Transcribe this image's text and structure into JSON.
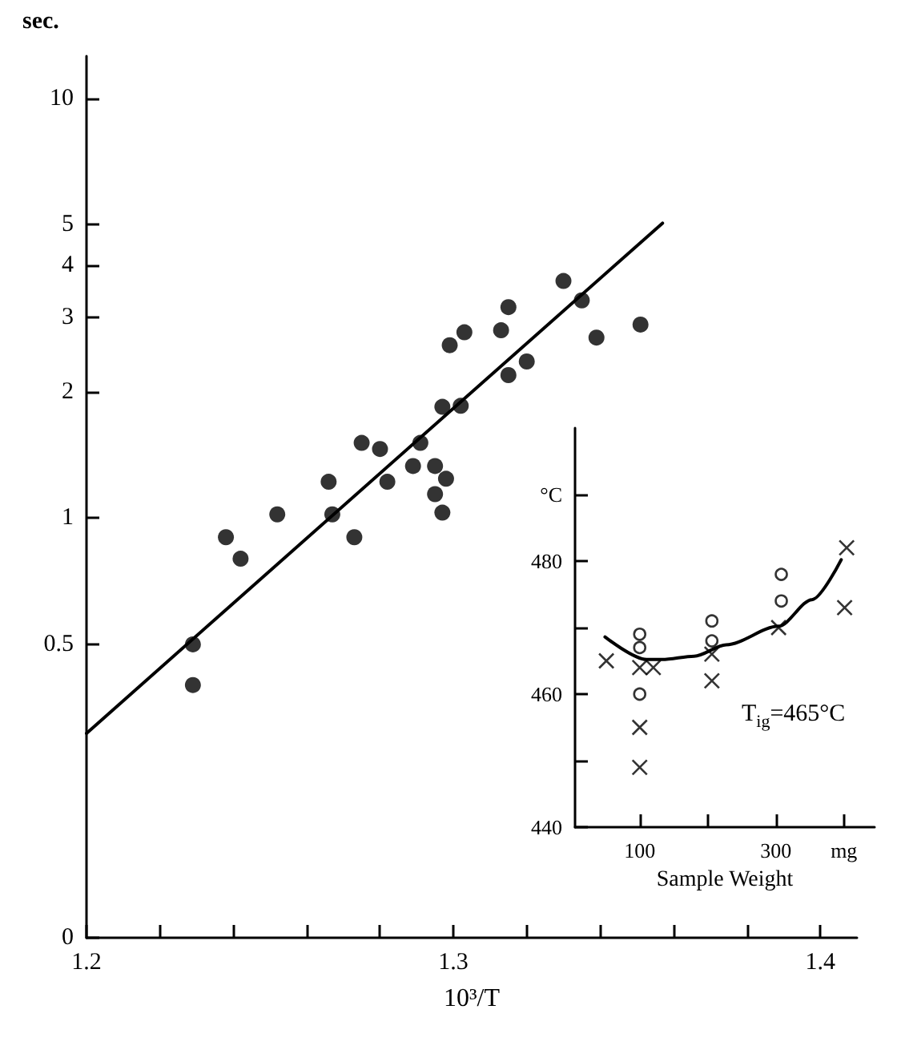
{
  "chart_data": [
    {
      "type": "scatter",
      "xlabel": "10³/T",
      "ylabel": "sec.",
      "log": "y",
      "grid": false,
      "marker": "circle",
      "xlim": [
        1.2,
        1.41
      ],
      "xticks": [
        1.2,
        {
          "value": 1.22,
          "label": null
        },
        {
          "value": 1.24,
          "label": null
        },
        {
          "value": 1.26,
          "label": null
        },
        {
          "value": 1.28,
          "label": null
        },
        1.3,
        {
          "value": 1.32,
          "label": null
        },
        {
          "value": 1.34,
          "label": null
        },
        {
          "value": 1.36,
          "label": null
        },
        {
          "value": 1.38,
          "label": null
        },
        1.4
      ],
      "ylim": [
        0.1,
        12.6
      ],
      "yticks": [
        {
          "value": 0.1,
          "label": "0"
        },
        0.5,
        1,
        2,
        3,
        4,
        5,
        10
      ],
      "series": [
        {
          "color": "#000000",
          "x": [
            1.229,
            1.229,
            1.238,
            1.242,
            1.252,
            1.266,
            1.267,
            1.273,
            1.275,
            1.28,
            1.282,
            1.289,
            1.291,
            1.295,
            1.295,
            1.298,
            1.297,
            1.297,
            1.302,
            1.299,
            1.303,
            1.313,
            1.315,
            1.315,
            1.32,
            1.33,
            1.335,
            1.339,
            1.351
          ],
          "values": [
            0.5,
            0.4,
            0.9,
            0.8,
            1.02,
            1.22,
            1.02,
            0.9,
            1.51,
            1.46,
            1.22,
            1.33,
            1.51,
            1.33,
            1.14,
            1.24,
            1.03,
            1.84,
            1.85,
            2.58,
            2.77,
            2.8,
            3.18,
            2.19,
            2.36,
            3.67,
            3.3,
            2.69,
            2.89
          ]
        },
        {
          "type": "line",
          "marker": "none",
          "color": "#000000",
          "x": [
            1.2,
            1.357
          ],
          "values": [
            0.307,
            5.04
          ]
        }
      ]
    },
    {
      "type": "scatter",
      "xlabel": "Sample Weight",
      "grid": false,
      "annotations": [
        "T$_{ig}$=465°C"
      ],
      "xlim": [
        5,
        445
      ],
      "xticks": [
        100,
        {
          "value": 200,
          "label": null
        },
        300,
        {
          "value": 400,
          "label": "mg"
        }
      ],
      "ylim": [
        440,
        500
      ],
      "yticks": [
        440,
        {
          "value": 450,
          "label": null
        },
        460,
        {
          "value": 470,
          "label": null
        },
        480,
        {
          "value": 490,
          "label": "°C"
        }
      ],
      "series": [
        {
          "marker": "circle",
          "color": "#000000",
          "x": [
            100,
            100,
            100,
            206,
            206,
            308,
            308
          ],
          "values": [
            469,
            467,
            460,
            471,
            468,
            478,
            474
          ]
        },
        {
          "marker": "cross",
          "color": "#000000",
          "x": [
            51,
            100,
            120,
            100,
            100,
            206,
            206,
            304,
            404,
            401
          ],
          "values": [
            465,
            464,
            464,
            455,
            449,
            466,
            462,
            470,
            482,
            473
          ]
        },
        {
          "type": "line",
          "marker": "none",
          "color": "#000000",
          "x": [
            49,
            110,
            133,
            180,
            227,
            304,
            353,
            396
          ],
          "values": [
            468.6,
            465.2,
            465.2,
            465.7,
            467.4,
            470.2,
            474.2,
            480.2
          ]
        }
      ]
    }
  ]
}
